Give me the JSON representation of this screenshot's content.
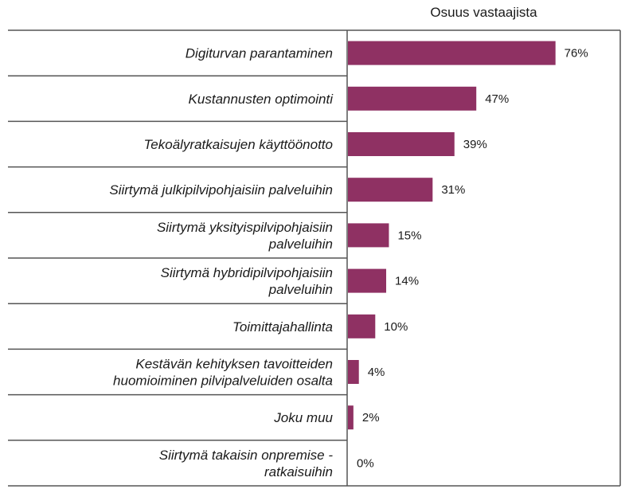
{
  "chart_data": {
    "type": "bar",
    "orientation": "horizontal",
    "column_header": "Osuus vastaajista",
    "categories": [
      [
        "Digiturvan parantaminen"
      ],
      [
        "Kustannusten optimointi"
      ],
      [
        "Tekoälyratkaisujen käyttöönotto"
      ],
      [
        "Siirtymä julkipilvipohjaisiin palveluihin"
      ],
      [
        "Siirtymä yksityispilvipohjaisiin",
        "palveluihin"
      ],
      [
        "Siirtymä hybridipilvipohjaisiin",
        "palveluihin"
      ],
      [
        "Toimittajahallinta"
      ],
      [
        "Kestävän kehityksen tavoitteiden",
        "huomioiminen pilvipalveluiden osalta"
      ],
      [
        "Joku muu"
      ],
      [
        "Siirtymä takaisin onpremise -",
        "ratkaisuihin"
      ]
    ],
    "values": [
      76,
      47,
      39,
      31,
      15,
      14,
      10,
      4,
      2,
      0
    ],
    "value_labels": [
      "76%",
      "47%",
      "39%",
      "31%",
      "15%",
      "14%",
      "10%",
      "4%",
      "2%",
      "0%"
    ],
    "xlim": [
      0,
      100
    ],
    "bar_color": "#8f3163",
    "grid": false
  }
}
